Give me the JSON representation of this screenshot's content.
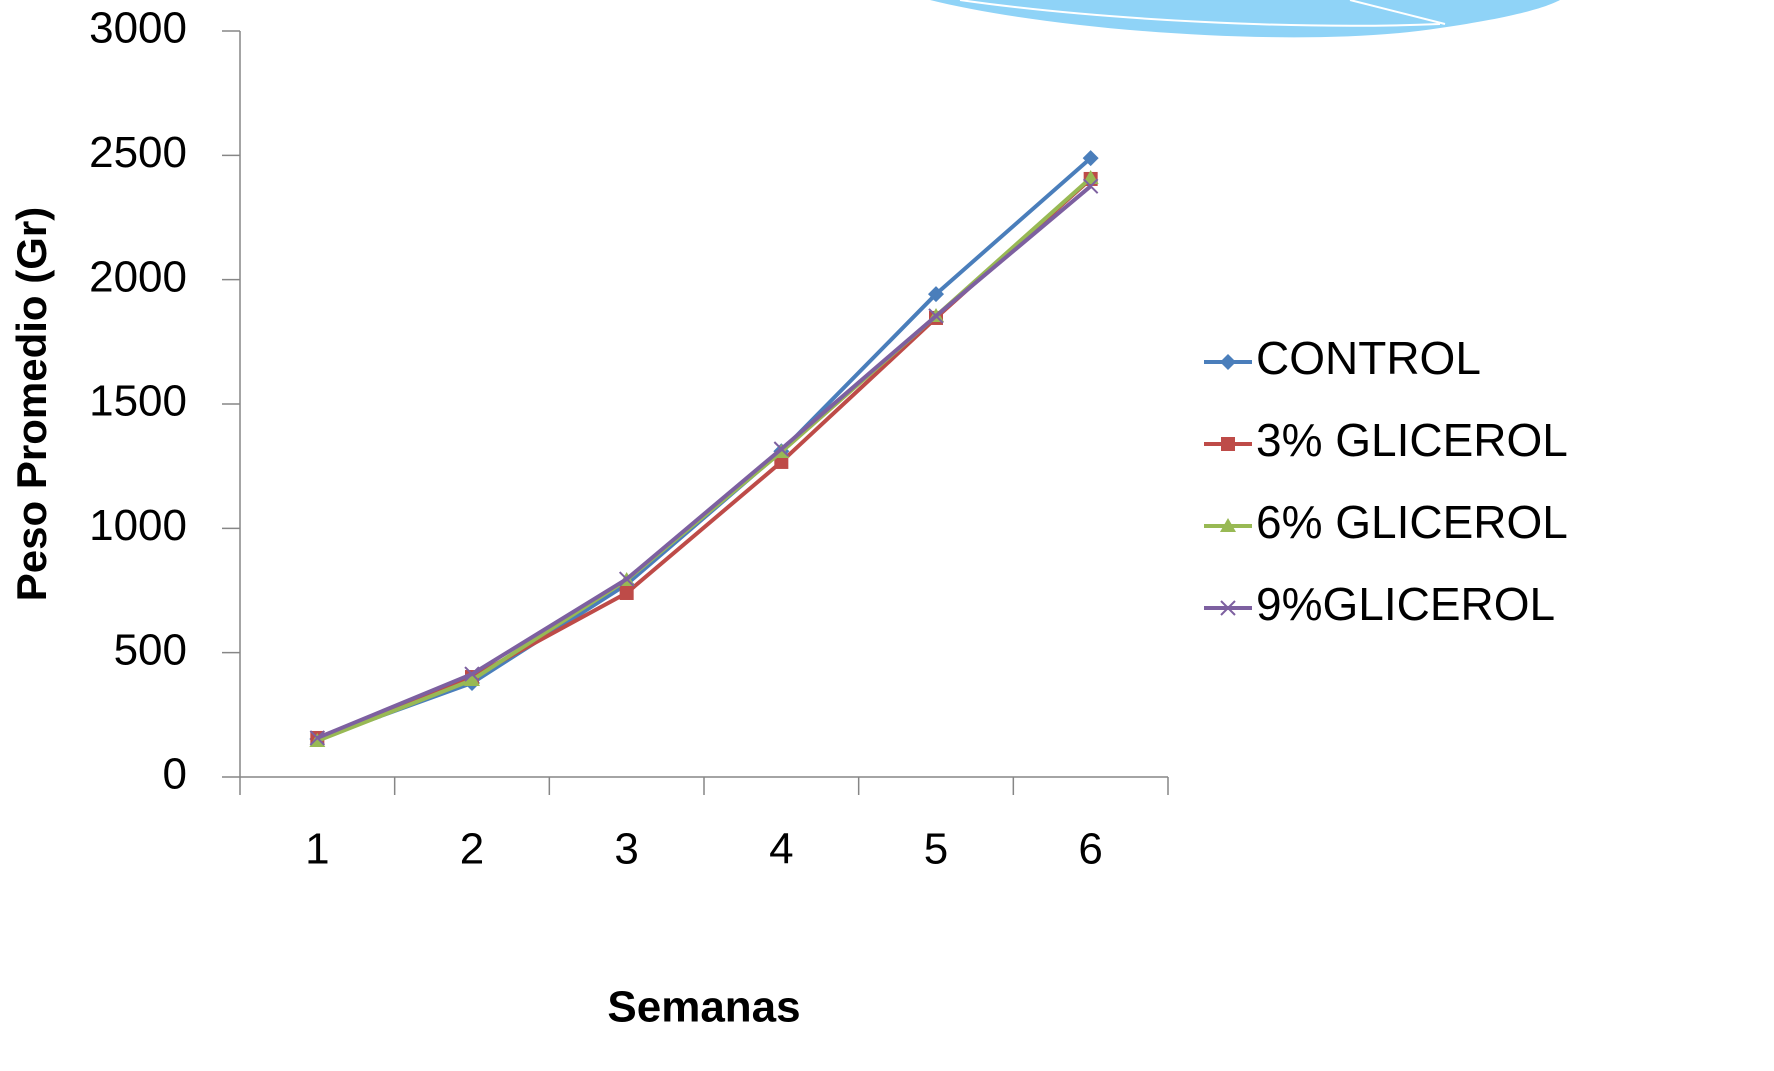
{
  "chart_data": {
    "type": "line",
    "x_label": "Semanas",
    "y_label": "Peso Promedio (Gr)",
    "categories": [
      "1",
      "2",
      "3",
      "4",
      "5",
      "6"
    ],
    "series": [
      {
        "name": "CONTROL",
        "color": "#4a7ebb",
        "marker": "diamond",
        "values": [
          153,
          378,
          775,
          1310,
          1942,
          2489
        ]
      },
      {
        "name": "3% GLICEROL",
        "color": "#be4b48",
        "marker": "square",
        "values": [
          157,
          402,
          740,
          1267,
          1846,
          2405
        ]
      },
      {
        "name": "6% GLICEROL",
        "color": "#98b954",
        "marker": "triangle",
        "values": [
          145,
          390,
          792,
          1307,
          1854,
          2409
        ]
      },
      {
        "name": "9%GLICEROL",
        "color": "#7d60a0",
        "marker": "x",
        "values": [
          157,
          414,
          796,
          1319,
          1854,
          2376
        ]
      }
    ],
    "ylim": [
      0,
      3000
    ],
    "yticks": [
      0,
      500,
      1000,
      1500,
      2000,
      2500,
      3000
    ],
    "grid": false,
    "legend": "right"
  }
}
